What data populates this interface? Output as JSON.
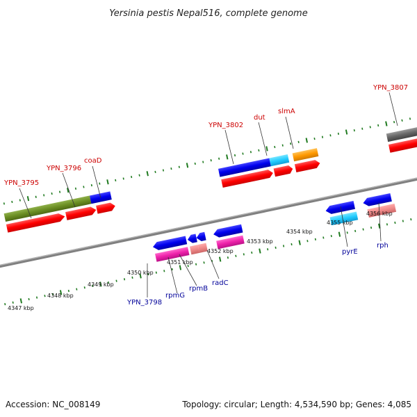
{
  "title": "Yersinia pestis Nepal516, complete genome",
  "footer": {
    "accession": "Accession: NC_008149",
    "summary": "Topology: circular; Length: 4,534,590 bp; Genes: 4,085"
  },
  "tick_labels": [
    "4347 kbp",
    "4348 kbp",
    "4349 kbp",
    "4350 kbp",
    "4351 kbp",
    "4352 kbp",
    "4353 kbp",
    "4354 kbp",
    "4355 kbp",
    "4356 kbp"
  ],
  "genes_top": [
    "YPN_3795",
    "YPN_3796",
    "coaD",
    "YPN_3802",
    "dut",
    "slmA",
    "YPN_3807"
  ],
  "genes_bottom": [
    "YPN_3798",
    "rpmG",
    "rpmB",
    "radC",
    "pyrE",
    "rph"
  ],
  "colors": {
    "backbone": "#808080",
    "tick": "#1f7a1f",
    "red": "#ff0000",
    "blue": "#0000dd",
    "olive": "#6b8e23",
    "cyan": "#22ccff",
    "orange": "#ff9900",
    "magenta": "#ee22aa",
    "pink": "#ee8888",
    "gray": "#666666",
    "label_top": "#cc0000",
    "label_bottom": "#000099"
  }
}
